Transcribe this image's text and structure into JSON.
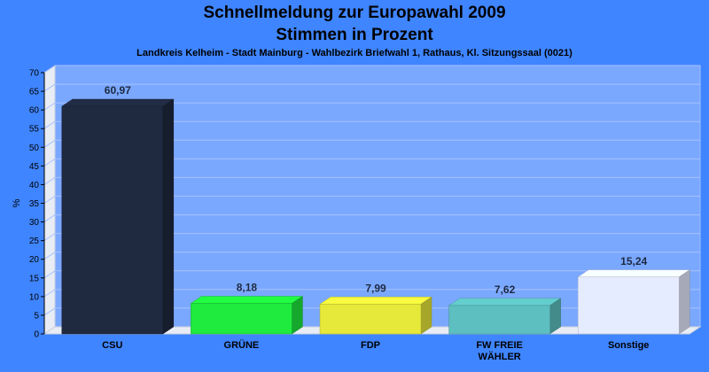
{
  "header": {
    "title_line1": "Schnellmeldung zur Europawahl 2009",
    "title_line2": "Stimmen in Prozent",
    "subtitle": "Landkreis Kelheim - Stadt Mainburg - Wahlbezirk Briefwahl 1, Rathaus, Kl. Sitzungssaal (0021)"
  },
  "chart_data": {
    "type": "bar",
    "title": "Schnellmeldung zur Europawahl 2009 Stimmen in Prozent",
    "subtitle": "Landkreis Kelheim - Stadt Mainburg - Wahlbezirk Briefwahl 1, Rathaus, Kl. Sitzungssaal (0021)",
    "xlabel": "",
    "ylabel": "%",
    "ylim": [
      0,
      70
    ],
    "yticks": [
      0,
      5,
      10,
      15,
      20,
      25,
      30,
      35,
      40,
      45,
      50,
      55,
      60,
      65,
      70
    ],
    "categories": [
      "CSU",
      "GRÜNE",
      "FDP",
      "FW FREIE WÄHLER",
      "Sonstige"
    ],
    "category_lines": [
      [
        "CSU"
      ],
      [
        "GRÜNE"
      ],
      [
        "FDP"
      ],
      [
        "FW FREIE",
        "WÄHLER"
      ],
      [
        "Sonstige"
      ]
    ],
    "values": [
      60.97,
      8.18,
      7.99,
      7.62,
      15.24
    ],
    "value_labels": [
      "60,97",
      "8,18",
      "7,99",
      "7,62",
      "15,24"
    ],
    "colors": [
      "#1f2940",
      "#1fea3e",
      "#e6e83a",
      "#5dbfbf",
      "#e6ecff"
    ],
    "grid": true,
    "style": "3d"
  }
}
